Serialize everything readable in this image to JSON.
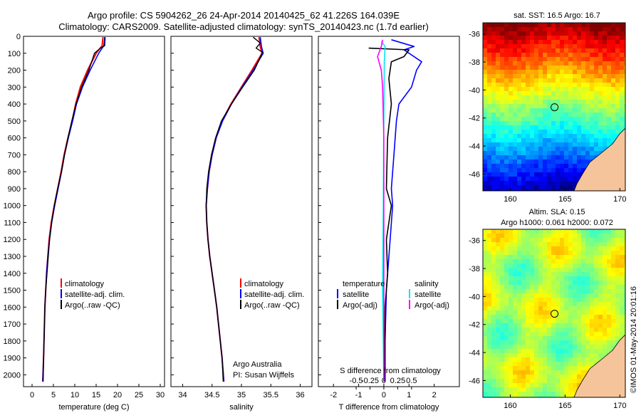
{
  "header": {
    "title_line1": "Argo profile: CS 5904262_26 24-Apr-2014 20140425_62 41.226S 164.039E",
    "title_line2": "Climatology: CARS2009. Satellite-adjusted climatology: synTS_20140423.nc (1.7d earlier)"
  },
  "colors": {
    "climatology": "#ff0000",
    "satellite": "#0000ff",
    "argo": "#000000",
    "salinity_satellite": "#00e5ee",
    "salinity_argo": "#ff00ff",
    "land": "#f5c49a"
  },
  "chart_data": [
    {
      "type": "line",
      "id": "temperature",
      "xlabel": "temperature (deg C)",
      "xlim": [
        -2,
        31
      ],
      "ylim": [
        2070,
        0
      ],
      "xticks": [
        "0",
        "5",
        "10",
        "15",
        "20",
        "25",
        "30"
      ],
      "yticks": [
        "0",
        "100",
        "200",
        "300",
        "400",
        "500",
        "600",
        "700",
        "800",
        "900",
        "1000",
        "1100",
        "1200",
        "1300",
        "1400",
        "1500",
        "1600",
        "1700",
        "1800",
        "1900",
        "2000"
      ],
      "legend": [
        "climatology",
        "satellite-adj. clim.",
        "Argo(..raw -QC)"
      ],
      "series": [
        {
          "name": "climatology",
          "points": [
            [
              16.6,
              5
            ],
            [
              16.4,
              55
            ],
            [
              15.0,
              100
            ],
            [
              13.0,
              200
            ],
            [
              11.3,
              300
            ],
            [
              10.2,
              400
            ],
            [
              9.4,
              500
            ],
            [
              8.4,
              600
            ],
            [
              7.5,
              700
            ],
            [
              6.8,
              800
            ],
            [
              6.0,
              900
            ],
            [
              5.2,
              1000
            ],
            [
              4.5,
              1100
            ],
            [
              4.0,
              1200
            ],
            [
              3.7,
              1300
            ],
            [
              3.4,
              1400
            ],
            [
              3.2,
              1500
            ],
            [
              3.0,
              1600
            ],
            [
              2.9,
              1700
            ],
            [
              2.8,
              1800
            ],
            [
              2.7,
              1900
            ],
            [
              2.5,
              2040
            ]
          ]
        },
        {
          "name": "satellite-adj. clim.",
          "points": [
            [
              17.0,
              5
            ],
            [
              16.8,
              55
            ],
            [
              15.6,
              100
            ],
            [
              13.6,
              200
            ],
            [
              11.8,
              300
            ],
            [
              10.4,
              400
            ],
            [
              9.5,
              500
            ],
            [
              8.5,
              600
            ],
            [
              7.6,
              700
            ],
            [
              6.9,
              800
            ],
            [
              6.1,
              900
            ],
            [
              5.3,
              1000
            ],
            [
              4.6,
              1100
            ],
            [
              4.1,
              1200
            ],
            [
              3.7,
              1300
            ],
            [
              3.4,
              1400
            ],
            [
              3.2,
              1500
            ],
            [
              3.0,
              1600
            ],
            [
              2.9,
              1700
            ],
            [
              2.8,
              1800
            ],
            [
              2.7,
              1900
            ],
            [
              2.5,
              2040
            ]
          ]
        },
        {
          "name": "Argo(..raw -QC)",
          "points": [
            [
              17.1,
              5
            ],
            [
              17.0,
              55
            ],
            [
              16.0,
              70
            ],
            [
              14.6,
              100
            ],
            [
              13.3,
              200
            ],
            [
              11.6,
              300
            ],
            [
              10.3,
              400
            ],
            [
              9.3,
              500
            ],
            [
              8.4,
              600
            ],
            [
              7.6,
              700
            ],
            [
              6.9,
              800
            ],
            [
              6.0,
              900
            ],
            [
              5.2,
              1000
            ],
            [
              4.6,
              1100
            ],
            [
              4.1,
              1200
            ],
            [
              3.8,
              1300
            ],
            [
              3.5,
              1400
            ],
            [
              3.2,
              1500
            ],
            [
              3.0,
              1600
            ],
            [
              2.9,
              1700
            ],
            [
              2.8,
              1800
            ],
            [
              2.7,
              1900
            ],
            [
              2.6,
              2040
            ]
          ]
        }
      ]
    },
    {
      "type": "line",
      "id": "salinity",
      "xlabel": "salinity",
      "xlim": [
        33.8,
        36.2
      ],
      "ylim": [
        2070,
        0
      ],
      "xticks": [
        "34",
        "34.5",
        "35",
        "35.5",
        "36"
      ],
      "legend": [
        "climatology",
        "satellite-adj. clim.",
        "Argo(..raw -QC)"
      ],
      "annotation": [
        "Argo Australia",
        "PI: Susan Wijffels"
      ],
      "series": [
        {
          "name": "climatology",
          "points": [
            [
              35.3,
              5
            ],
            [
              35.32,
              60
            ],
            [
              35.35,
              100
            ],
            [
              35.18,
              200
            ],
            [
              35.0,
              300
            ],
            [
              34.82,
              400
            ],
            [
              34.67,
              500
            ],
            [
              34.57,
              600
            ],
            [
              34.5,
              700
            ],
            [
              34.45,
              800
            ],
            [
              34.42,
              900
            ],
            [
              34.4,
              1000
            ],
            [
              34.41,
              1100
            ],
            [
              34.43,
              1200
            ],
            [
              34.46,
              1300
            ],
            [
              34.5,
              1400
            ],
            [
              34.54,
              1500
            ],
            [
              34.58,
              1600
            ],
            [
              34.61,
              1700
            ],
            [
              34.64,
              1800
            ],
            [
              34.67,
              1900
            ],
            [
              34.7,
              2040
            ]
          ]
        },
        {
          "name": "satellite-adj. clim.",
          "points": [
            [
              35.32,
              5
            ],
            [
              35.34,
              60
            ],
            [
              35.37,
              100
            ],
            [
              35.2,
              200
            ],
            [
              35.01,
              300
            ],
            [
              34.83,
              400
            ],
            [
              34.68,
              500
            ],
            [
              34.57,
              600
            ],
            [
              34.5,
              700
            ],
            [
              34.45,
              800
            ],
            [
              34.42,
              900
            ],
            [
              34.4,
              1000
            ],
            [
              34.41,
              1100
            ],
            [
              34.43,
              1200
            ],
            [
              34.46,
              1300
            ],
            [
              34.5,
              1400
            ],
            [
              34.54,
              1500
            ],
            [
              34.58,
              1600
            ],
            [
              34.61,
              1700
            ],
            [
              34.64,
              1800
            ],
            [
              34.67,
              1900
            ],
            [
              34.7,
              2040
            ]
          ]
        },
        {
          "name": "Argo(..raw -QC)",
          "points": [
            [
              35.2,
              5
            ],
            [
              35.32,
              40
            ],
            [
              35.25,
              70
            ],
            [
              35.36,
              95
            ],
            [
              35.22,
              200
            ],
            [
              35.02,
              300
            ],
            [
              34.83,
              400
            ],
            [
              34.66,
              500
            ],
            [
              34.56,
              600
            ],
            [
              34.49,
              700
            ],
            [
              34.44,
              800
            ],
            [
              34.41,
              900
            ],
            [
              34.4,
              1000
            ],
            [
              34.41,
              1100
            ],
            [
              34.43,
              1200
            ],
            [
              34.46,
              1300
            ],
            [
              34.5,
              1400
            ],
            [
              34.54,
              1500
            ],
            [
              34.58,
              1600
            ],
            [
              34.61,
              1700
            ],
            [
              34.64,
              1800
            ],
            [
              34.67,
              1900
            ],
            [
              34.69,
              2040
            ]
          ]
        }
      ]
    },
    {
      "type": "line",
      "id": "difference",
      "xlabel": "T difference from climatology",
      "xlim": [
        -2.6,
        3.0
      ],
      "ylim": [
        2070,
        0
      ],
      "xticks": [
        "-2",
        "-1",
        "0",
        "1",
        "2"
      ],
      "top_label": "S difference from climatology",
      "top_ticks": [
        "-0.5",
        "-0.25",
        "0",
        "0.25",
        "0.5"
      ],
      "legend_temperature": [
        "temperature",
        "satellite",
        "Argo(-adj)"
      ],
      "legend_salinity": [
        "salinity",
        "satellite",
        "Argo(-adj)"
      ],
      "series": [
        {
          "name": "temperature satellite",
          "points": [
            [
              0.3,
              20
            ],
            [
              1.2,
              60
            ],
            [
              0.8,
              80
            ],
            [
              1.5,
              150
            ],
            [
              1.3,
              200
            ],
            [
              1.1,
              300
            ],
            [
              0.6,
              400
            ],
            [
              0.5,
              500
            ],
            [
              0.4,
              700
            ],
            [
              0.3,
              900
            ],
            [
              0.35,
              1000
            ],
            [
              0.25,
              1200
            ],
            [
              0.1,
              1500
            ],
            [
              0.05,
              1800
            ],
            [
              0.05,
              2040
            ]
          ]
        },
        {
          "name": "temperature Argo(-adj)",
          "points": [
            [
              -0.6,
              70
            ],
            [
              1.0,
              80
            ],
            [
              0.8,
              120
            ],
            [
              0.3,
              150
            ],
            [
              0.2,
              250
            ],
            [
              0.3,
              400
            ],
            [
              0.15,
              600
            ],
            [
              0.1,
              900
            ],
            [
              0.3,
              1000
            ],
            [
              0.1,
              1200
            ],
            [
              0.15,
              1400
            ],
            [
              0.05,
              1600
            ],
            [
              0.02,
              2040
            ]
          ]
        },
        {
          "name": "salinity satellite",
          "points": [
            [
              -0.1,
              30
            ],
            [
              0.05,
              60
            ],
            [
              0.02,
              150
            ],
            [
              0.0,
              500
            ],
            [
              -0.02,
              1000
            ],
            [
              -0.05,
              1500
            ],
            [
              0.0,
              2040
            ]
          ]
        },
        {
          "name": "salinity Argo(-adj)",
          "points": [
            [
              -0.05,
              20
            ],
            [
              -0.1,
              60
            ],
            [
              -0.25,
              120
            ],
            [
              -0.1,
              200
            ],
            [
              -0.05,
              300
            ],
            [
              0.0,
              600
            ],
            [
              0.0,
              2040
            ]
          ]
        }
      ]
    },
    {
      "type": "heatmap",
      "id": "sst-map",
      "title": "sat. SST: 16.5 Argo: 16.7",
      "xlim": [
        157.5,
        170.5
      ],
      "ylim": [
        -47.2,
        -35.2
      ],
      "xticks": [
        "160",
        "165",
        "170"
      ],
      "yticks": [
        "-36",
        "-38",
        "-40",
        "-42",
        "-44",
        "-46"
      ],
      "marker": [
        164.04,
        -41.23
      ]
    },
    {
      "type": "heatmap",
      "id": "sla-map",
      "title_line1": "Altim. SLA: 0.15",
      "title_line2": "Argo h1000: 0.061 h2000: 0.072",
      "xlim": [
        157.5,
        170.5
      ],
      "ylim": [
        -47.2,
        -35.2
      ],
      "xticks": [
        "160",
        "165",
        "170"
      ],
      "yticks": [
        "-36",
        "-38",
        "-40",
        "-42",
        "-44",
        "-46"
      ],
      "marker": [
        164.04,
        -41.23
      ]
    }
  ],
  "footer": {
    "stamp": "©IMOS 01-May-2014 20:01:16"
  }
}
